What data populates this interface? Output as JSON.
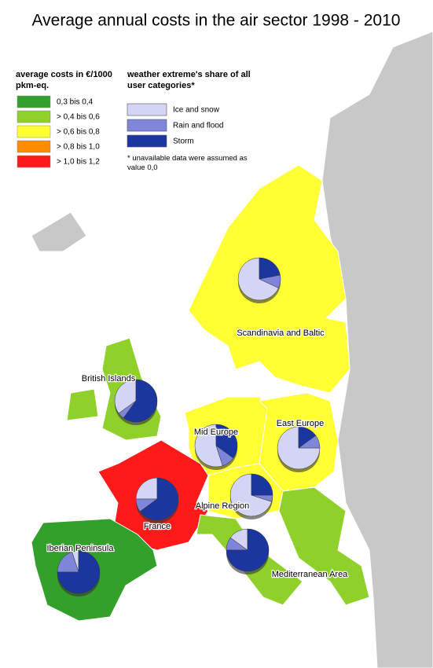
{
  "title": "Average annual costs in the air sector 1998 - 2010",
  "cost_legend": {
    "title": "average costs in €/1000 pkm-eq.",
    "classes": [
      {
        "label": "0,3 bis 0,4",
        "color": "#33a02c"
      },
      {
        "label": "> 0,4 bis 0,6",
        "color": "#8fd12a"
      },
      {
        "label": "> 0,6 bis 0,8",
        "color": "#ffff33"
      },
      {
        "label": "> 0,8 bis 1,0",
        "color": "#ff8c00"
      },
      {
        "label": "> 1,0 bis 1,2",
        "color": "#ff1a1a"
      }
    ]
  },
  "share_legend": {
    "title": "weather extreme's share of all user categories*",
    "categories": [
      {
        "label": "Ice and snow",
        "color": "#d4d4f5"
      },
      {
        "label": "Rain and flood",
        "color": "#7f86d9"
      },
      {
        "label": "Storm",
        "color": "#1c36a0"
      }
    ],
    "note": "* unavailable data were assumed as value 0,0"
  },
  "regions": [
    {
      "name": "Scandinavia and Baltic",
      "color": "#ffff33",
      "shares": [
        68,
        10,
        22
      ]
    },
    {
      "name": "British Islands",
      "color": "#8fd12a",
      "shares": [
        35,
        5,
        60
      ]
    },
    {
      "name": "Mid Europe",
      "color": "#ffff33",
      "shares": [
        55,
        10,
        35
      ]
    },
    {
      "name": "East Europe",
      "color": "#ffff33",
      "shares": [
        75,
        10,
        15
      ]
    },
    {
      "name": "France",
      "color": "#ff1a1a",
      "shares": [
        25,
        10,
        65
      ]
    },
    {
      "name": "Alpine Region",
      "color": "#ffff33",
      "shares": [
        70,
        5,
        25
      ]
    },
    {
      "name": "Mediterranean Area",
      "color": "#8fd12a",
      "shares": [
        15,
        10,
        75
      ]
    },
    {
      "name": "Iberian Peninsula",
      "color": "#33a02c",
      "shares": [
        5,
        20,
        75
      ]
    }
  ]
}
